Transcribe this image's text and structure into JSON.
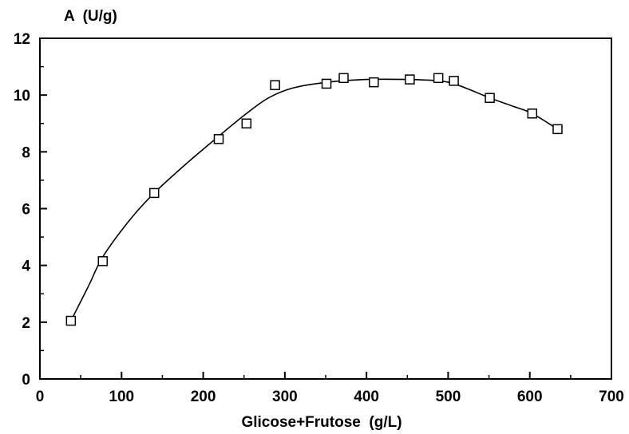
{
  "chart_data": {
    "type": "scatter",
    "title": "",
    "ylabel": "A  (U/g)",
    "xlabel": "Glicose+Frutose  (g/L)",
    "xlim": [
      0,
      700
    ],
    "ylim": [
      0,
      12
    ],
    "x_ticks": [
      0,
      100,
      200,
      300,
      400,
      500,
      600,
      700
    ],
    "y_ticks": [
      0,
      2,
      4,
      6,
      8,
      10,
      12
    ],
    "grid": false,
    "marker": "open-square",
    "series": [
      {
        "points": [
          {
            "x": 38,
            "y": 2.05
          },
          {
            "x": 77,
            "y": 4.15
          },
          {
            "x": 140,
            "y": 6.55
          },
          {
            "x": 219,
            "y": 8.45
          },
          {
            "x": 253,
            "y": 9.0
          },
          {
            "x": 288,
            "y": 10.35
          },
          {
            "x": 351,
            "y": 10.4
          },
          {
            "x": 372,
            "y": 10.6
          },
          {
            "x": 409,
            "y": 10.45
          },
          {
            "x": 453,
            "y": 10.55
          },
          {
            "x": 488,
            "y": 10.6
          },
          {
            "x": 507,
            "y": 10.5
          },
          {
            "x": 551,
            "y": 9.9
          },
          {
            "x": 603,
            "y": 9.35
          },
          {
            "x": 634,
            "y": 8.8
          }
        ]
      }
    ],
    "fit_curve": [
      {
        "x": 38,
        "y": 2.05
      },
      {
        "x": 60,
        "y": 3.3
      },
      {
        "x": 77,
        "y": 4.3
      },
      {
        "x": 110,
        "y": 5.6
      },
      {
        "x": 140,
        "y": 6.55
      },
      {
        "x": 180,
        "y": 7.6
      },
      {
        "x": 219,
        "y": 8.55
      },
      {
        "x": 253,
        "y": 9.35
      },
      {
        "x": 280,
        "y": 9.9
      },
      {
        "x": 310,
        "y": 10.25
      },
      {
        "x": 351,
        "y": 10.45
      },
      {
        "x": 400,
        "y": 10.55
      },
      {
        "x": 450,
        "y": 10.55
      },
      {
        "x": 488,
        "y": 10.5
      },
      {
        "x": 507,
        "y": 10.4
      },
      {
        "x": 530,
        "y": 10.15
      },
      {
        "x": 551,
        "y": 9.9
      },
      {
        "x": 580,
        "y": 9.6
      },
      {
        "x": 603,
        "y": 9.35
      },
      {
        "x": 634,
        "y": 8.8
      }
    ]
  }
}
